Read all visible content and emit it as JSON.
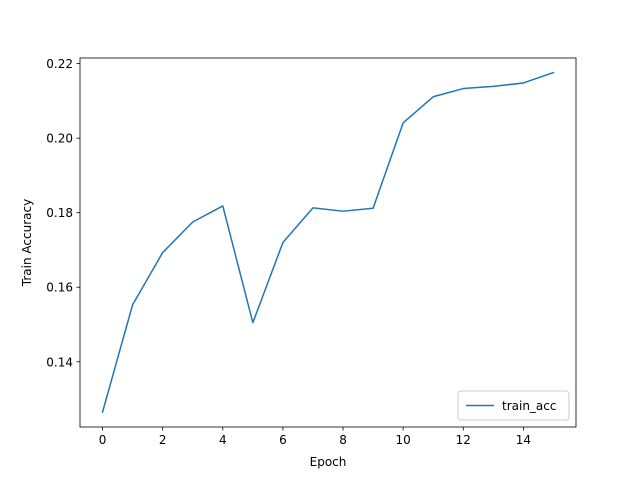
{
  "chart_data": {
    "type": "line",
    "title": "",
    "xlabel": "Epoch",
    "ylabel": "Train Accuracy",
    "xlim": [
      -0.75,
      15.75
    ],
    "ylim": [
      0.1225,
      0.2215
    ],
    "xticks": [
      0,
      2,
      4,
      6,
      8,
      10,
      12,
      14
    ],
    "xtick_labels": [
      "0",
      "2",
      "4",
      "6",
      "8",
      "10",
      "12",
      "14"
    ],
    "yticks": [
      0.14,
      0.16,
      0.18,
      0.2,
      0.22
    ],
    "ytick_labels": [
      "0.14",
      "0.16",
      "0.18",
      "0.20",
      "0.22"
    ],
    "grid": false,
    "legend_position": "lower-right",
    "series": [
      {
        "name": "train_acc",
        "color": "#1f77b4",
        "x": [
          0,
          1,
          2,
          3,
          4,
          5,
          6,
          7,
          8,
          9,
          10,
          11,
          12,
          13,
          14,
          15
        ],
        "values": [
          0.1265,
          0.1553,
          0.1693,
          0.1775,
          0.1818,
          0.1505,
          0.172,
          0.1813,
          0.1804,
          0.1812,
          0.2041,
          0.2111,
          0.2133,
          0.2139,
          0.2148,
          0.2176
        ]
      }
    ]
  }
}
